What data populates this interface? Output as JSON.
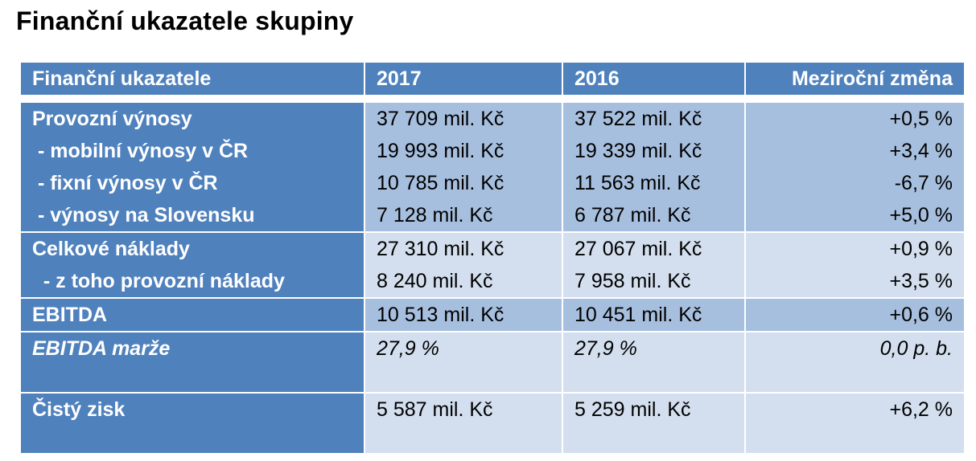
{
  "title": "Finanční ukazatele skupiny",
  "header": {
    "label": "Finanční ukazatele",
    "y2017": "2017",
    "y2016": "2016",
    "change": "Meziroční změna"
  },
  "blocks": [
    {
      "rows": [
        {
          "label": "Provozní výnosy",
          "v2017": "37 709 mil. Kč",
          "v2016": "37 522 mil. Kč",
          "change": "+0,5 %"
        },
        {
          "label": " - mobilní výnosy v ČR",
          "v2017": "19 993 mil. Kč",
          "v2016": "19 339 mil. Kč",
          "change": "+3,4 %"
        },
        {
          "label": " - fixní výnosy v ČR",
          "v2017": "10 785 mil. Kč",
          "v2016": "11 563 mil. Kč",
          "change": "-6,7 %"
        },
        {
          "label": " - výnosy na Slovensku",
          "v2017": "7 128 mil. Kč",
          "v2016": "6 787 mil. Kč",
          "change": "+5,0 %"
        }
      ]
    },
    {
      "rows": [
        {
          "label": "Celkové náklady",
          "v2017": "27 310 mil. Kč",
          "v2016": "27 067 mil. Kč",
          "change": "+0,9 %"
        },
        {
          "label": "  - z toho provozní náklady",
          "v2017": "8 240 mil. Kč",
          "v2016": "7 958 mil. Kč",
          "change": "+3,5 %"
        }
      ]
    },
    {
      "rows": [
        {
          "label": "EBITDA",
          "v2017": "10 513 mil. Kč",
          "v2016": "10 451 mil. Kč",
          "change": "+0,6 %"
        }
      ]
    },
    {
      "rows": [
        {
          "label": "EBITDA marže",
          "v2017": "27,9 %",
          "v2016": "27,9 %",
          "change": "0,0 p. b."
        }
      ]
    },
    {
      "rows": [
        {
          "label": "Čistý zisk",
          "v2017": "5 587 mil. Kč",
          "v2016": "5 259 mil. Kč",
          "change": "+6,2 %"
        }
      ]
    }
  ],
  "colors": {
    "header_blue": "#4f81bd",
    "cell_medium": "#a7bfde",
    "cell_light": "#d3dfee"
  }
}
